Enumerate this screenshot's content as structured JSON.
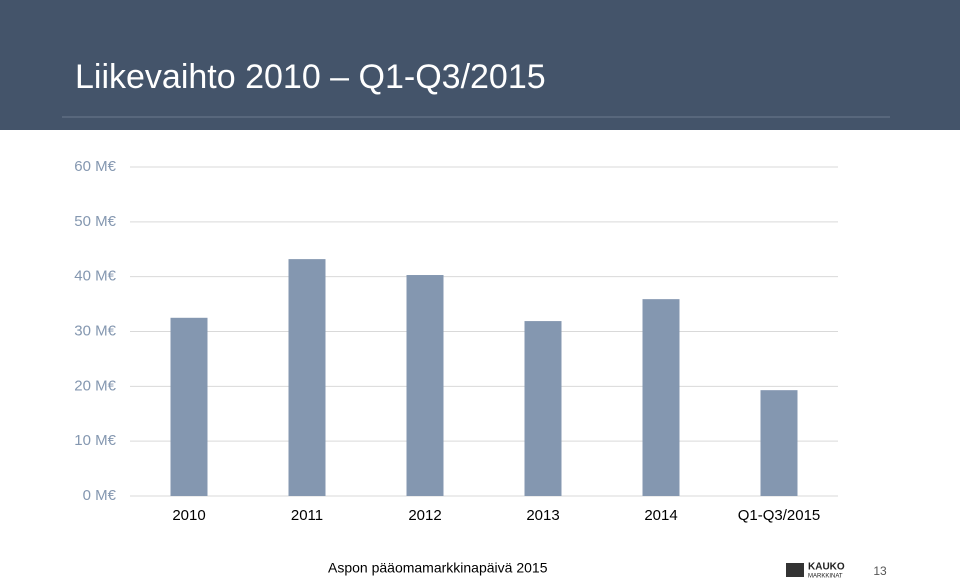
{
  "chart_data": {
    "type": "bar",
    "title": "Liikevaihto 2010 – Q1-Q3/2015",
    "categories": [
      "2010",
      "2011",
      "2012",
      "2013",
      "2014",
      "Q1-Q3/2015"
    ],
    "values": [
      32.5,
      43.2,
      40.3,
      31.9,
      35.9,
      19.3
    ],
    "color": "#8497b0",
    "ylim": [
      0,
      60
    ],
    "yticks": [
      {
        "value": 0,
        "label": "0 M€"
      },
      {
        "value": 10,
        "label": "10 M€"
      },
      {
        "value": 20,
        "label": "20 M€"
      },
      {
        "value": 30,
        "label": "30 M€"
      },
      {
        "value": 40,
        "label": "40 M€"
      },
      {
        "value": 50,
        "label": "50 M€"
      },
      {
        "value": 60,
        "label": "60 M€"
      }
    ],
    "grid": true
  },
  "slide": {
    "footer": "Aspon pääomamarkkinapäivä 2015",
    "logo": "KAUKO",
    "logo_sub": "MARKKINAT",
    "page_number": "13"
  }
}
